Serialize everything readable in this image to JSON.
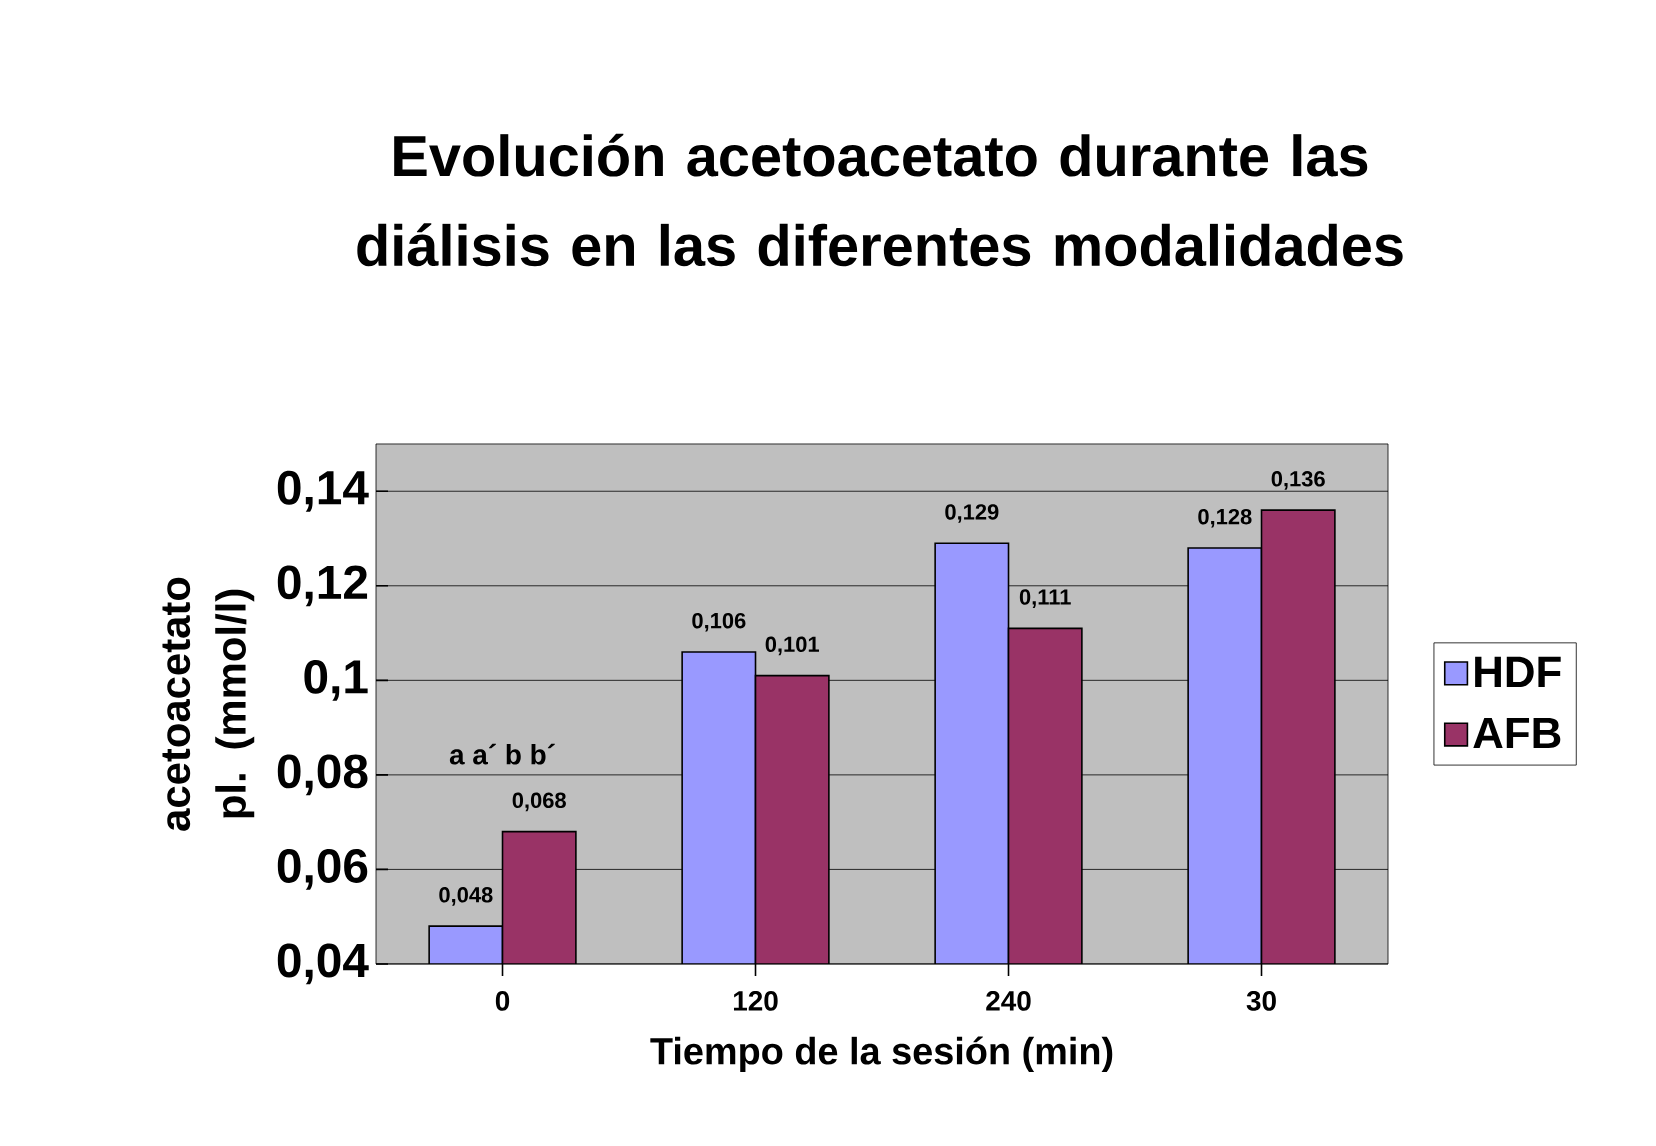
{
  "chart_data": {
    "type": "bar",
    "title": "Evolución acetoacetato durante las diálisis en las diferentes modalidades",
    "xlabel": "Tiempo de la sesión (min)",
    "ylabel": "acetoacetato pl. (mmol/l)",
    "categories": [
      "0",
      "120",
      "240",
      "30"
    ],
    "series": [
      {
        "name": "HDF",
        "color": "#9999ff",
        "values": [
          0.048,
          0.106,
          0.129,
          0.128
        ],
        "value_labels": [
          "0,048",
          "0,106",
          "0,129",
          "0,128"
        ]
      },
      {
        "name": "AFB",
        "color": "#993366",
        "values": [
          0.068,
          0.101,
          0.111,
          0.136
        ],
        "value_labels": [
          "0,068",
          "0,101",
          "0,111",
          "0,136"
        ]
      }
    ],
    "ylim": [
      0.04,
      0.15
    ],
    "yticks": [
      {
        "value": 0.04,
        "label": "0,04"
      },
      {
        "value": 0.06,
        "label": "0,06"
      },
      {
        "value": 0.08,
        "label": "0,08"
      },
      {
        "value": 0.1,
        "label": "0,1"
      },
      {
        "value": 0.12,
        "label": "0,12"
      },
      {
        "value": 0.14,
        "label": "0,14"
      }
    ],
    "annotations": [
      "a a´ b b´"
    ],
    "grid": "y",
    "legend": "right"
  }
}
